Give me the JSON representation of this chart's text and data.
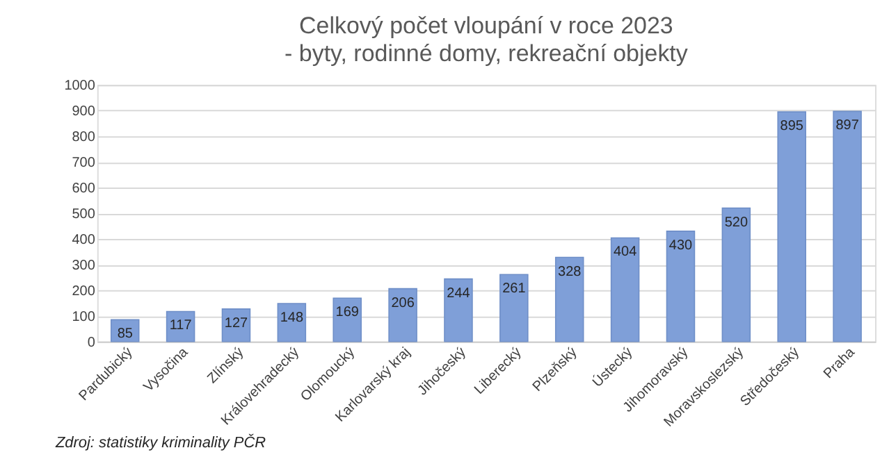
{
  "chart_data": {
    "type": "bar",
    "title": "Celkový počet vloupání v roce 2023",
    "subtitle": "- byty, rodinné domy, rekreační objekty",
    "categories": [
      "Pardubický",
      "Vysočina",
      "Zlínský",
      "Královehradecký",
      "Olomoucký",
      "Karlovarský kraj",
      "Jihočeský",
      "Liberecký",
      "Plzeňský",
      "Ústecký",
      "Jihomoravský",
      "Moravskoslezský",
      "Středočeský",
      "Praha"
    ],
    "values": [
      85,
      117,
      127,
      148,
      169,
      206,
      244,
      261,
      328,
      404,
      430,
      520,
      895,
      897
    ],
    "color": "#7f9fd8",
    "ylim": [
      0,
      1000
    ],
    "yticks": [
      0,
      100,
      200,
      300,
      400,
      500,
      600,
      700,
      800,
      900,
      1000
    ],
    "grid": "y",
    "data_labels": true,
    "annotations": [
      "Zdroj: statistiky kriminality PČR"
    ]
  }
}
